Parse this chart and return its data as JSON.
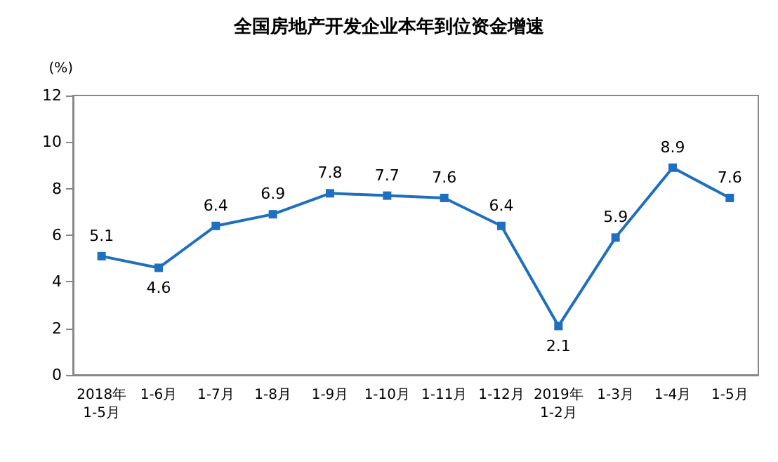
{
  "chart_data": {
    "type": "line",
    "title": "全国房地产开发企业本年到位资金增速",
    "ylabel": "(%)",
    "categories": [
      "2018年\n1-5月",
      "1-6月",
      "1-7月",
      "1-8月",
      "1-9月",
      "1-10月",
      "1-11月",
      "1-12月",
      "2019年\n1-2月",
      "1-3月",
      "1-4月",
      "1-5月"
    ],
    "series": [
      {
        "color": "#1f6fc0",
        "values": [
          5.1,
          4.6,
          6.4,
          6.9,
          7.8,
          7.7,
          7.6,
          6.4,
          2.1,
          5.9,
          8.9,
          7.6
        ]
      }
    ],
    "ylim": [
      0,
      12
    ],
    "yticks": [
      0,
      2,
      4,
      6,
      8,
      10,
      12
    ],
    "grid": false,
    "marker": "square",
    "line_style": "solid",
    "data_labels": true
  }
}
